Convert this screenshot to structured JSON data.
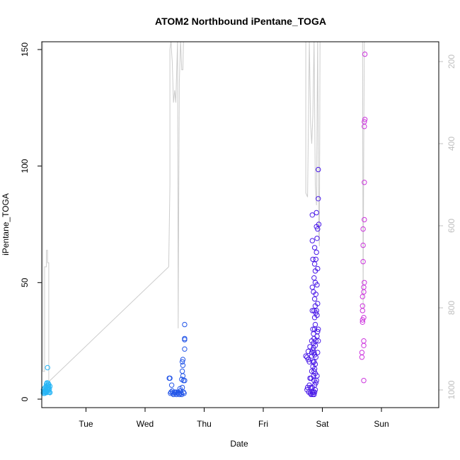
{
  "chart_data": {
    "type": "scatter",
    "title": "ATOM2 Northbound iPentane_TOGA",
    "xlabel": "Date",
    "ylabel": "iPentane_TOGA",
    "x_unit": "day",
    "xlim": [
      0.55,
      6.0
    ],
    "ylim": [
      0,
      150
    ],
    "x_ticks": [
      {
        "value": 1,
        "label": "Tue"
      },
      {
        "value": 2,
        "label": "Wed"
      },
      {
        "value": 3,
        "label": "Thu"
      },
      {
        "value": 4,
        "label": "Fri"
      },
      {
        "value": 5,
        "label": "Sat"
      },
      {
        "value": 6,
        "label": "Sun"
      }
    ],
    "y_ticks": [
      0,
      50,
      100,
      150
    ],
    "right_axis": {
      "ticks": [
        200,
        400,
        600,
        800,
        1000
      ],
      "reversed": true,
      "lim": [
        1040,
        150
      ],
      "color": "#bfbfbf"
    },
    "grid": false,
    "legend": "none",
    "series": [
      {
        "color": "#29b6f6",
        "points": [
          [
            0.28,
            4
          ],
          [
            0.28,
            3
          ],
          [
            0.28,
            2.5
          ],
          [
            0.29,
            3.5
          ],
          [
            0.29,
            4.5
          ],
          [
            0.3,
            3
          ],
          [
            0.3,
            2.5
          ],
          [
            0.31,
            5
          ],
          [
            0.31,
            3.5
          ],
          [
            0.32,
            4
          ],
          [
            0.32,
            3
          ],
          [
            0.33,
            2.8
          ],
          [
            0.33,
            6.5
          ],
          [
            0.33,
            5.5
          ],
          [
            0.34,
            4.5
          ],
          [
            0.34,
            3.3
          ],
          [
            0.34,
            7
          ],
          [
            0.35,
            6
          ],
          [
            0.35,
            13.5
          ],
          [
            0.35,
            5
          ],
          [
            0.35,
            4
          ],
          [
            0.36,
            3
          ],
          [
            0.36,
            5.8
          ],
          [
            0.36,
            4.8
          ],
          [
            0.36,
            6.8
          ],
          [
            0.37,
            3.8
          ],
          [
            0.37,
            6.3
          ],
          [
            0.37,
            5.3
          ],
          [
            0.38,
            4.3
          ],
          [
            0.38,
            3
          ],
          [
            0.39,
            2.8
          ],
          [
            0.39,
            5.5
          ]
        ]
      },
      {
        "color": "#2255e8",
        "points": [
          [
            2.41,
            9
          ],
          [
            2.42,
            9
          ],
          [
            2.43,
            2.5
          ],
          [
            2.44,
            3
          ],
          [
            2.45,
            6
          ],
          [
            2.46,
            3.5
          ],
          [
            2.47,
            2.5
          ],
          [
            2.48,
            2
          ],
          [
            2.5,
            3
          ],
          [
            2.51,
            2.5
          ],
          [
            2.52,
            3
          ],
          [
            2.53,
            2
          ],
          [
            2.55,
            2.5
          ],
          [
            2.56,
            3
          ],
          [
            2.57,
            2.5
          ],
          [
            2.58,
            2
          ],
          [
            2.59,
            4.5
          ],
          [
            2.6,
            3.5
          ],
          [
            2.61,
            2.5
          ],
          [
            2.62,
            8.5
          ],
          [
            2.62,
            2
          ],
          [
            2.63,
            5
          ],
          [
            2.63,
            12
          ],
          [
            2.63,
            16
          ],
          [
            2.64,
            10
          ],
          [
            2.64,
            14.5
          ],
          [
            2.64,
            17
          ],
          [
            2.65,
            3
          ],
          [
            2.65,
            8
          ],
          [
            2.66,
            2.5
          ],
          [
            2.67,
            21.5
          ],
          [
            2.67,
            8
          ],
          [
            2.67,
            25.5
          ],
          [
            2.67,
            26
          ],
          [
            2.67,
            32
          ]
        ]
      },
      {
        "color": "#4a1ae8",
        "points": [
          [
            4.72,
            18.5
          ],
          [
            4.74,
            4
          ],
          [
            4.74,
            18
          ],
          [
            4.75,
            5
          ],
          [
            4.76,
            17
          ],
          [
            4.76,
            20.5
          ],
          [
            4.77,
            3
          ],
          [
            4.78,
            6
          ],
          [
            4.78,
            16
          ],
          [
            4.79,
            9
          ],
          [
            4.79,
            22.5
          ],
          [
            4.8,
            5
          ],
          [
            4.8,
            2.5
          ],
          [
            4.81,
            2
          ],
          [
            4.81,
            9
          ],
          [
            4.82,
            12
          ],
          [
            4.82,
            18.5
          ],
          [
            4.82,
            25
          ],
          [
            4.82,
            20
          ],
          [
            4.83,
            3
          ],
          [
            4.83,
            5
          ],
          [
            4.83,
            38
          ],
          [
            4.83,
            48
          ],
          [
            4.83,
            68
          ],
          [
            4.83,
            79
          ],
          [
            4.84,
            2
          ],
          [
            4.84,
            30
          ],
          [
            4.84,
            60
          ],
          [
            4.84,
            14
          ],
          [
            4.84,
            16
          ],
          [
            4.84,
            21
          ],
          [
            4.85,
            3
          ],
          [
            4.85,
            10
          ],
          [
            4.85,
            22
          ],
          [
            4.85,
            24
          ],
          [
            4.85,
            28
          ],
          [
            4.85,
            46
          ],
          [
            4.86,
            2
          ],
          [
            4.86,
            8
          ],
          [
            4.86,
            12
          ],
          [
            4.86,
            16
          ],
          [
            4.86,
            20
          ],
          [
            4.86,
            26
          ],
          [
            4.86,
            38
          ],
          [
            4.86,
            52
          ],
          [
            4.87,
            3
          ],
          [
            4.87,
            6
          ],
          [
            4.87,
            13
          ],
          [
            4.87,
            19
          ],
          [
            4.87,
            30
          ],
          [
            4.87,
            35
          ],
          [
            4.87,
            43
          ],
          [
            4.87,
            58
          ],
          [
            4.87,
            65
          ],
          [
            4.88,
            4
          ],
          [
            4.88,
            11
          ],
          [
            4.88,
            15
          ],
          [
            4.88,
            23
          ],
          [
            4.88,
            32
          ],
          [
            4.88,
            40
          ],
          [
            4.88,
            50
          ],
          [
            4.88,
            55
          ],
          [
            4.89,
            7
          ],
          [
            4.89,
            18
          ],
          [
            4.89,
            25
          ],
          [
            4.89,
            37
          ],
          [
            4.89,
            45
          ],
          [
            4.89,
            60
          ],
          [
            4.9,
            8
          ],
          [
            4.9,
            38
          ],
          [
            4.9,
            63
          ],
          [
            4.9,
            74
          ],
          [
            4.9,
            80
          ],
          [
            4.91,
            10
          ],
          [
            4.91,
            27
          ],
          [
            4.91,
            36
          ],
          [
            4.91,
            49
          ],
          [
            4.91,
            69
          ],
          [
            4.92,
            20
          ],
          [
            4.92,
            29
          ],
          [
            4.92,
            41
          ],
          [
            4.92,
            56
          ],
          [
            4.92,
            73
          ],
          [
            4.93,
            25
          ],
          [
            4.93,
            30
          ],
          [
            4.93,
            86
          ],
          [
            4.93,
            98.5
          ],
          [
            4.94,
            75
          ]
        ]
      },
      {
        "color": "#cc33dd",
        "points": [
          [
            5.67,
            20
          ],
          [
            5.67,
            18
          ],
          [
            5.68,
            34
          ],
          [
            5.68,
            33
          ],
          [
            5.68,
            40
          ],
          [
            5.68,
            38
          ],
          [
            5.68,
            44
          ],
          [
            5.69,
            59
          ],
          [
            5.69,
            66
          ],
          [
            5.69,
            73
          ],
          [
            5.7,
            8
          ],
          [
            5.7,
            23
          ],
          [
            5.7,
            25
          ],
          [
            5.7,
            35
          ],
          [
            5.7,
            46
          ],
          [
            5.7,
            48
          ],
          [
            5.71,
            50
          ],
          [
            5.71,
            77
          ],
          [
            5.71,
            93
          ],
          [
            5.71,
            117
          ],
          [
            5.71,
            119
          ],
          [
            5.72,
            120
          ],
          [
            5.72,
            148
          ]
        ]
      }
    ],
    "altitude_line": {
      "color": "#cccccc",
      "segments": [
        [
          [
            0.27,
            150
          ],
          [
            0.27,
            955
          ],
          [
            0.3,
            955
          ],
          [
            0.3,
            700
          ],
          [
            0.33,
            700
          ],
          [
            0.33,
            660
          ],
          [
            0.35,
            660
          ],
          [
            0.35,
            690
          ],
          [
            0.37,
            690
          ],
          [
            0.37,
            700
          ],
          [
            0.37,
            980
          ]
        ],
        [
          [
            0.37,
            980
          ],
          [
            2.4,
            700
          ]
        ],
        [
          [
            2.4,
            700
          ],
          [
            2.42,
            500
          ],
          [
            2.42,
            170
          ],
          [
            2.44,
            150
          ],
          [
            2.45,
            180
          ],
          [
            2.46,
            200
          ],
          [
            2.48,
            300
          ],
          [
            2.5,
            270
          ],
          [
            2.52,
            300
          ],
          [
            2.55,
            150
          ],
          [
            2.56,
            850
          ],
          [
            2.57,
            520
          ],
          [
            2.58,
            250
          ],
          [
            2.6,
            150
          ],
          [
            2.62,
            220
          ],
          [
            2.64,
            220
          ],
          [
            2.65,
            150
          ]
        ],
        [
          [
            4.72,
            150
          ],
          [
            4.72,
            520
          ],
          [
            4.75,
            530
          ],
          [
            4.78,
            150
          ],
          [
            4.8,
            350
          ],
          [
            4.82,
            400
          ],
          [
            4.84,
            330
          ],
          [
            4.86,
            150
          ],
          [
            4.88,
            500
          ],
          [
            4.9,
            550
          ],
          [
            4.92,
            150
          ],
          [
            4.94,
            620
          ],
          [
            4.95,
            650
          ],
          [
            4.96,
            150
          ]
        ],
        [
          [
            5.68,
            150
          ],
          [
            5.69,
            800
          ],
          [
            5.7,
            400
          ],
          [
            5.71,
            150
          ]
        ]
      ]
    }
  }
}
